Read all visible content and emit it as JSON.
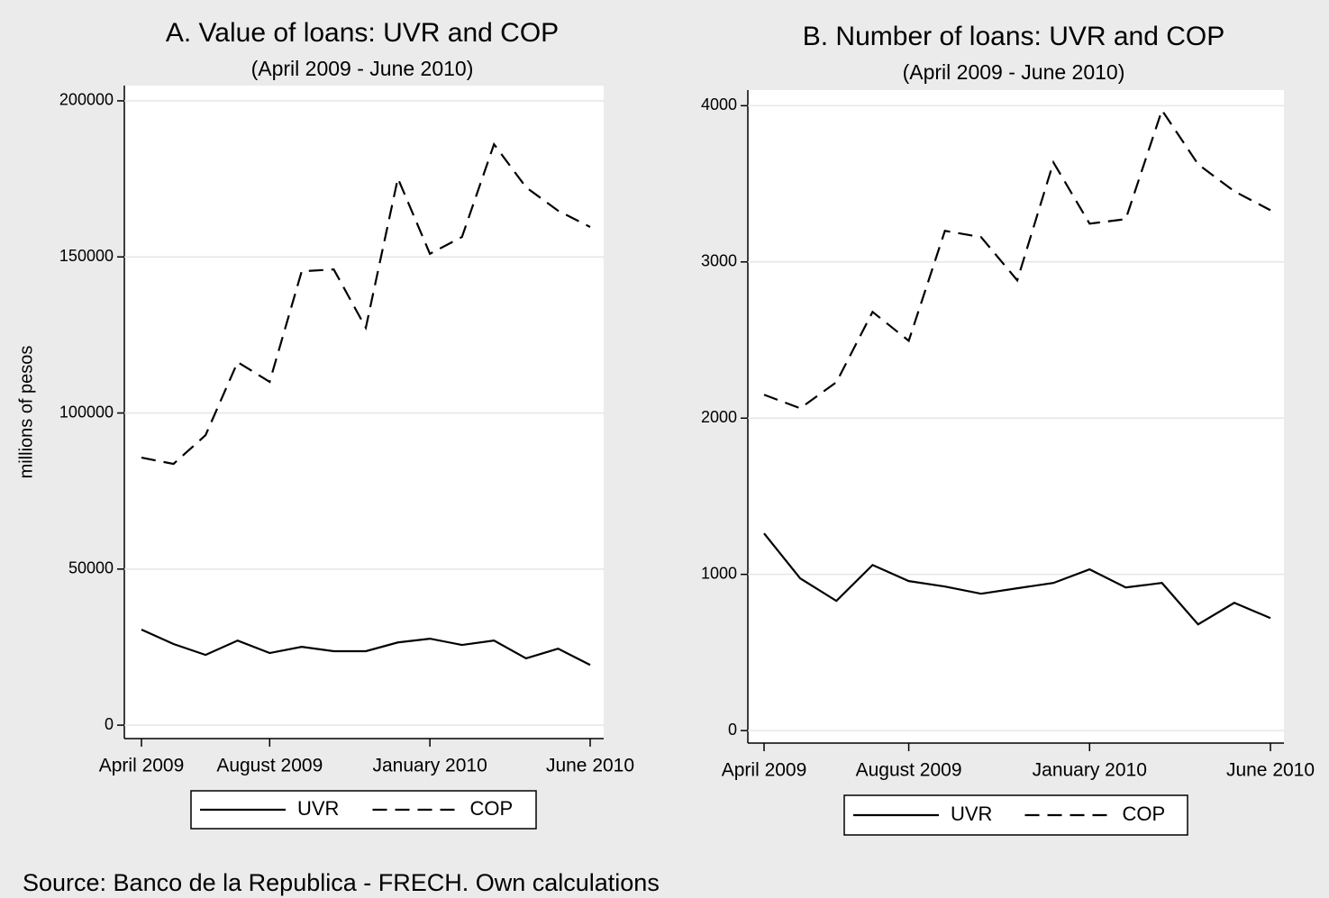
{
  "chart_data": [
    {
      "type": "line",
      "title": "A. Value of loans: UVR and COP",
      "subtitle": "(April 2009 - June 2010)",
      "y_label": "millions of pesos",
      "x": [
        "2009-04",
        "2009-05",
        "2009-06",
        "2009-07",
        "2009-08",
        "2009-09",
        "2009-10",
        "2009-11",
        "2009-12",
        "2010-01",
        "2010-02",
        "2010-03",
        "2010-04",
        "2010-05",
        "2010-06"
      ],
      "xlim": [
        "2009-04",
        "2010-06"
      ],
      "xticks": [
        {
          "value": "2009-04",
          "label": "April 2009"
        },
        {
          "value": "2009-08",
          "label": "August 2009"
        },
        {
          "value": "2010-01",
          "label": "January 2010"
        },
        {
          "value": "2010-06",
          "label": "June 2010"
        }
      ],
      "ylim": [
        -4300,
        204900
      ],
      "yticks": [
        0,
        50000,
        100000,
        150000,
        200000
      ],
      "grid": true,
      "series": [
        {
          "name": "UVR",
          "color": "#000000",
          "style": "solid",
          "values": [
            30600,
            26000,
            22500,
            27100,
            23100,
            25100,
            23700,
            23700,
            26500,
            27700,
            25700,
            27100,
            21400,
            24500,
            19300
          ]
        },
        {
          "name": "COP",
          "color": "#000000",
          "style": "dashed",
          "values": [
            85700,
            83700,
            92900,
            116300,
            110000,
            145400,
            146000,
            127300,
            175200,
            151000,
            156400,
            186100,
            172300,
            164800,
            159600
          ]
        }
      ]
    },
    {
      "type": "line",
      "title": "B. Number of loans: UVR and COP",
      "subtitle": "(April 2009 - June 2010)",
      "x": [
        "2009-04",
        "2009-05",
        "2009-06",
        "2009-07",
        "2009-08",
        "2009-09",
        "2009-10",
        "2009-11",
        "2009-12",
        "2010-01",
        "2010-02",
        "2010-03",
        "2010-04",
        "2010-05",
        "2010-06"
      ],
      "xlim": [
        "2009-04",
        "2010-06"
      ],
      "xticks": [
        {
          "value": "2009-04",
          "label": "April 2009"
        },
        {
          "value": "2009-08",
          "label": "August 2009"
        },
        {
          "value": "2010-01",
          "label": "January 2010"
        },
        {
          "value": "2010-06",
          "label": "June 2010"
        }
      ],
      "ylim": [
        -80,
        4100
      ],
      "yticks": [
        0,
        1000,
        2000,
        3000,
        4000
      ],
      "grid": true,
      "series": [
        {
          "name": "UVR",
          "color": "#000000",
          "style": "solid",
          "values": [
            1262,
            974,
            830,
            1060,
            957,
            922,
            876,
            911,
            945,
            1032,
            916,
            945,
            680,
            818,
            720
          ]
        },
        {
          "name": "COP",
          "color": "#000000",
          "style": "dashed",
          "values": [
            2150,
            2063,
            2230,
            2680,
            2495,
            3199,
            3159,
            2882,
            3637,
            3245,
            3274,
            3971,
            3625,
            3452,
            3331
          ]
        }
      ]
    }
  ],
  "source": "Source: Banco de la Republica - FRECH. Own calculations"
}
